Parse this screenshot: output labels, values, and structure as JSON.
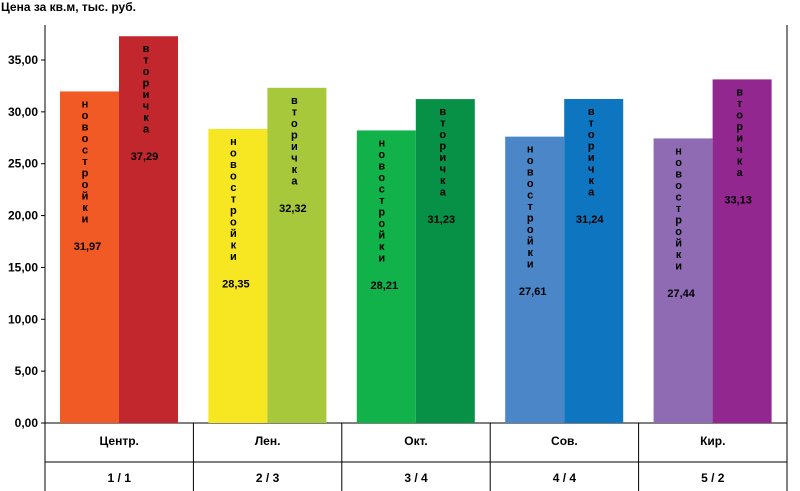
{
  "chart_data": {
    "type": "bar",
    "ylabel": "Цена за кв.м, тыс. руб.",
    "ylim": [
      0,
      35
    ],
    "yticks": [
      "0,00",
      "5,00",
      "10,00",
      "15,00",
      "20,00",
      "25,00",
      "30,00",
      "35,00"
    ],
    "categories": [
      "Центр.",
      "Лен.",
      "Окт.",
      "Сов.",
      "Кир."
    ],
    "sub_categories": [
      "1 / 1",
      "2 / 3",
      "3 / 4",
      "4 / 4",
      "5 / 2"
    ],
    "grid": false,
    "series": [
      {
        "name": "новостройки",
        "values": [
          31.97,
          28.35,
          28.21,
          27.61,
          27.44
        ],
        "labels": [
          "31,97",
          "28,35",
          "28,21",
          "27,61",
          "27,44"
        ],
        "colors": [
          "#f15a24",
          "#f7e622",
          "#12b24b",
          "#4a86c8",
          "#8e6bb2"
        ]
      },
      {
        "name": "вторичка",
        "values": [
          37.29,
          32.32,
          31.23,
          31.24,
          33.13
        ],
        "labels": [
          "37,29",
          "32,32",
          "31,23",
          "31,24",
          "33,13"
        ],
        "colors": [
          "#c1272d",
          "#a6c83a",
          "#079147",
          "#0e75c0",
          "#92278f"
        ]
      }
    ]
  }
}
